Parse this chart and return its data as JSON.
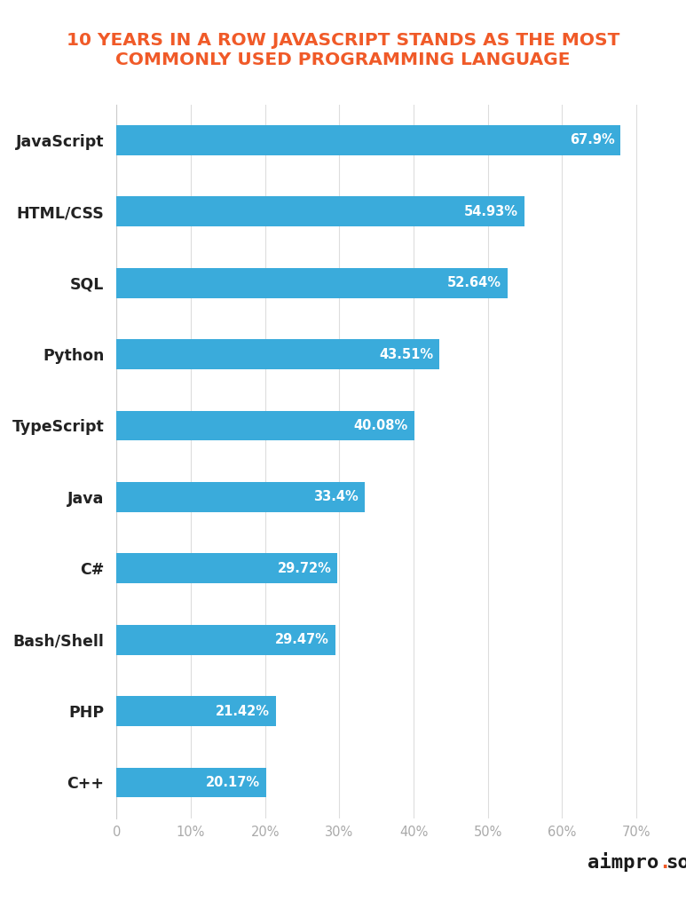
{
  "title_line1": "10 YEARS IN A ROW JAVASCRIPT STANDS AS THE MOST",
  "title_line2": "COMMONLY USED PROGRAMMING LANGUAGE",
  "title_color": "#F05A28",
  "title_fontsize": 14.5,
  "categories": [
    "JavaScript",
    "HTML/CSS",
    "SQL",
    "Python",
    "TypeScript",
    "Java",
    "C#",
    "Bash/Shell",
    "PHP",
    "C++"
  ],
  "values": [
    67.9,
    54.93,
    52.64,
    43.51,
    40.08,
    33.4,
    29.72,
    29.47,
    21.42,
    20.17
  ],
  "labels": [
    "67.9%",
    "54.93%",
    "52.64%",
    "43.51%",
    "40.08%",
    "33.4%",
    "29.72%",
    "29.47%",
    "21.42%",
    "20.17%"
  ],
  "bar_color": "#3AABDB",
  "bar_height": 0.42,
  "xlim": [
    0,
    73
  ],
  "xticks": [
    0,
    10,
    20,
    30,
    40,
    50,
    60,
    70
  ],
  "xtick_labels": [
    "0",
    "10%",
    "20%",
    "30%",
    "40%",
    "50%",
    "60%",
    "70%"
  ],
  "background_color": "#FFFFFF",
  "grid_color": "#DDDDDD",
  "label_fontsize": 10.5,
  "tick_fontsize": 10.5,
  "category_fontsize": 12.5,
  "watermark_color_black": "#1a1a1a",
  "watermark_color_orange": "#F05A28",
  "watermark_fontsize": 16
}
